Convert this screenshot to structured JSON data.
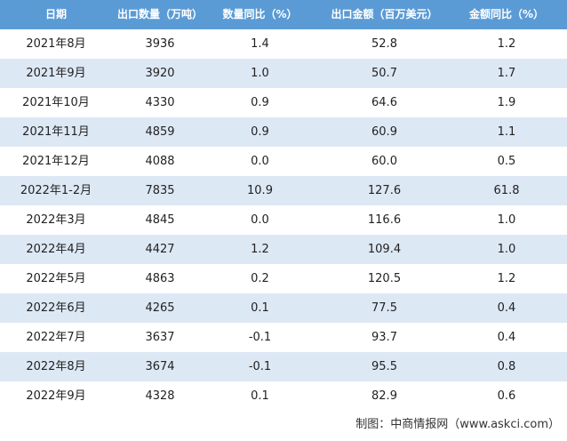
{
  "table": {
    "header": [
      "日期",
      "出口数量（万吨）",
      "数量同比（%）",
      "出口金额（百万美元）",
      "金额同比（%）"
    ],
    "rows": [
      [
        "2021年8月",
        "3936",
        "1.4",
        "52.8",
        "1.2"
      ],
      [
        "2021年9月",
        "3920",
        "1.0",
        "50.7",
        "1.7"
      ],
      [
        "2021年10月",
        "4330",
        "0.9",
        "64.6",
        "1.9"
      ],
      [
        "2021年11月",
        "4859",
        "0.9",
        "60.9",
        "1.1"
      ],
      [
        "2021年12月",
        "4088",
        "0.0",
        "60.0",
        "0.5"
      ],
      [
        "2022年1-2月",
        "7835",
        "10.9",
        "127.6",
        "61.8"
      ],
      [
        "2022年3月",
        "4845",
        "0.0",
        "116.6",
        "1.0"
      ],
      [
        "2022年4月",
        "4427",
        "1.2",
        "109.4",
        "1.0"
      ],
      [
        "2022年5月",
        "4863",
        "0.2",
        "120.5",
        "1.2"
      ],
      [
        "2022年6月",
        "4265",
        "0.1",
        "77.5",
        "0.4"
      ],
      [
        "2022年7月",
        "3637",
        "-0.1",
        "93.7",
        "0.4"
      ],
      [
        "2022年8月",
        "3674",
        "-0.1",
        "95.5",
        "0.8"
      ],
      [
        "2022年9月",
        "4328",
        "0.1",
        "82.9",
        "0.6"
      ]
    ]
  },
  "footer": "制图：中商情报网（www.askci.com）"
}
